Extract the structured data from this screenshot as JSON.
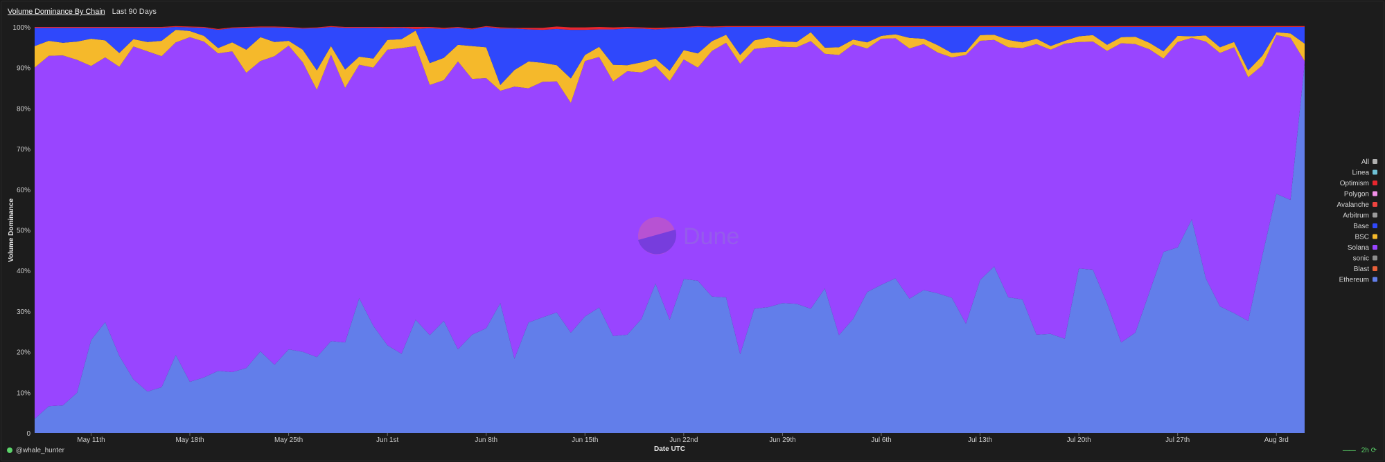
{
  "header": {
    "title": "Volume Dominance By Chain",
    "subtitle": "Last 90 Days"
  },
  "footer": {
    "user": "@whale_hunter",
    "refresh": "2h"
  },
  "watermark": "Dune",
  "chart_data": {
    "type": "area",
    "stacked": "percent",
    "xlabel": "Date UTC",
    "ylabel": "Volume Dominance",
    "ylim": [
      0,
      100
    ],
    "yticks": [
      "0",
      "10%",
      "20%",
      "30%",
      "40%",
      "50%",
      "60%",
      "70%",
      "80%",
      "90%",
      "100%"
    ],
    "xtick_labels": [
      "May 11th",
      "May 18th",
      "May 25th",
      "Jun 1st",
      "Jun 8th",
      "Jun 15th",
      "Jun 22nd",
      "Jun 29th",
      "Jul 6th",
      "Jul 13th",
      "Jul 20th",
      "Jul 27th",
      "Aug 3rd"
    ],
    "legend_position": "right",
    "legend": [
      {
        "name": "All",
        "color": "#b0b0b0"
      },
      {
        "name": "Linea",
        "color": "#6ec1d6"
      },
      {
        "name": "Optimism",
        "color": "#e8262e"
      },
      {
        "name": "Polygon",
        "color": "#f08fe8"
      },
      {
        "name": "Avalanche",
        "color": "#ee4440"
      },
      {
        "name": "Arbitrum",
        "color": "#9a9a9a"
      },
      {
        "name": "Base",
        "color": "#2f48fb"
      },
      {
        "name": "BSC",
        "color": "#f5b92b"
      },
      {
        "name": "Solana",
        "color": "#9945ff"
      },
      {
        "name": "sonic",
        "color": "#8e8e8e"
      },
      {
        "name": "Blast",
        "color": "#e8603a"
      },
      {
        "name": "Ethereum",
        "color": "#627eea"
      }
    ],
    "x_start_date": "2025-05-07",
    "series": [
      {
        "name": "Ethereum",
        "color": "#627eea",
        "values": [
          3.5,
          6.6,
          6.8,
          9.9,
          22.9,
          27.3,
          19,
          13.2,
          10.2,
          11.3,
          19.2,
          12.6,
          13.7,
          15.3,
          15,
          16,
          20.1,
          16.8,
          20.6,
          20,
          18.7,
          22.6,
          22.3,
          33.2,
          26.4,
          21.6,
          19.5,
          27.9,
          24.1,
          27.6,
          20.6,
          24.2,
          25.8,
          32,
          18.3,
          27.2,
          28.5,
          29.7,
          24.7,
          28.7,
          30.9,
          23.9,
          24.2,
          28.1,
          36.8,
          27.9,
          37.9,
          37.5,
          33.6,
          33.4,
          19.4,
          30.6,
          31,
          32,
          31.8,
          30.6,
          35.6,
          24.1,
          28.1,
          34.7,
          36.5,
          38.1,
          33.1,
          35.2,
          34.4,
          33.3,
          26.9,
          37.7,
          41,
          33.4,
          32.9,
          24.2,
          24.4,
          23.2,
          40.5,
          40.2,
          31.9,
          22.3,
          24.7,
          34.7,
          44.6,
          45.7,
          52.6,
          38.1,
          31.2,
          29.5,
          27.6,
          43.7,
          58.9,
          57.4,
          91
        ]
      },
      {
        "name": "Solana",
        "color": "#9945ff",
        "values": [
          86.5,
          86.3,
          86.2,
          82,
          67.5,
          65.2,
          71.2,
          82,
          83.8,
          81.5,
          77,
          84.9,
          82.7,
          78.2,
          79,
          72.7,
          71.5,
          76,
          74.8,
          71.3,
          65.8,
          70.6,
          62.7,
          57.5,
          63.6,
          72.8,
          75.3,
          67.4,
          61.6,
          59.3,
          70.9,
          63,
          61.6,
          52.3,
          67,
          57.7,
          58,
          56.9,
          56.6,
          62.9,
          61.7,
          62.7,
          64.9,
          60.7,
          53.6,
          58.8,
          54.1,
          52.5,
          60.5,
          62.7,
          71.5,
          64,
          64,
          63.1,
          63.2,
          65.9,
          57.8,
          69,
          67.6,
          60,
          60.6,
          59.1,
          61.6,
          60.6,
          59.3,
          59.2,
          66.2,
          58.9,
          55.8,
          61.6,
          61.9,
          71.6,
          70,
          72.7,
          55.8,
          56.2,
          62.2,
          73.7,
          71.1,
          59.8,
          47.6,
          50.6,
          44.7,
          58.3,
          62.4,
          65.5,
          60,
          46.8,
          39.1,
          39.9,
          0.6
        ]
      },
      {
        "name": "BSC",
        "color": "#f5b92b",
        "values": [
          5.3,
          3.7,
          3.1,
          4.5,
          6.7,
          4.2,
          3.4,
          1.8,
          2.3,
          3.8,
          3.1,
          1.5,
          1.4,
          1.3,
          2.2,
          5.7,
          5.9,
          3.5,
          1.2,
          3.1,
          4.8,
          2.1,
          4.5,
          2,
          2.2,
          2.4,
          2.2,
          3.8,
          5.4,
          5.5,
          4.1,
          8.1,
          7.6,
          1.4,
          4.1,
          6.6,
          4.7,
          4,
          6,
          1.5,
          2.5,
          4.1,
          1.5,
          2.5,
          1.8,
          2.5,
          2.3,
          3.5,
          2.4,
          2,
          2.2,
          2.1,
          2.4,
          1.3,
          1.3,
          2.2,
          1.5,
          1.9,
          1.2,
          1.5,
          0.7,
          1,
          2.6,
          1.3,
          1.8,
          1.1,
          0.8,
          1.4,
          1.3,
          1.8,
          1.4,
          1.3,
          0.9,
          0.7,
          1.4,
          1.6,
          1.5,
          1.5,
          1.8,
          1.6,
          1.8,
          1.5,
          0.4,
          1.5,
          1.4,
          1.3,
          1.7,
          2.4,
          0.7,
          1.1,
          4.3
        ]
      },
      {
        "name": "Base",
        "color": "#2f48fb",
        "values": [
          4.5,
          3.2,
          3.7,
          3.4,
          2.7,
          3.1,
          6.2,
          2.8,
          3.5,
          3.2,
          0.7,
          0.9,
          2,
          4.5,
          3.5,
          5.4,
          2.4,
          3.6,
          3.2,
          5.2,
          10.4,
          4.7,
          10.3,
          7.1,
          7.6,
          2.9,
          2.8,
          0.4,
          8.6,
          7.1,
          4.2,
          4.1,
          5,
          13.9,
          10.2,
          7.9,
          8.1,
          8.9,
          12,
          6.2,
          4.3,
          8.7,
          9,
          8.3,
          7.2,
          10.4,
          5.5,
          6.5,
          3.4,
          1.9,
          6.9,
          3.3,
          2.6,
          3.6,
          3.7,
          1.3,
          5.1,
          5,
          3.1,
          3.8,
          2.2,
          1.8,
          2.7,
          2.9,
          4.5,
          6.4,
          6.1,
          2,
          1.9,
          3.2,
          3.8,
          2.9,
          4.7,
          3.4,
          2.3,
          2,
          4.4,
          2.5,
          2.4,
          3.9,
          6,
          2.2,
          2.3,
          2.1,
          5,
          3.7,
          10.7,
          7.1,
          1.3,
          1.6,
          4.1
        ]
      },
      {
        "name": "Optimism",
        "color": "#e8262e",
        "values": [
          0.2,
          0.2,
          0.2,
          0.2,
          0.2,
          0.2,
          0.2,
          0.2,
          0.2,
          0.2,
          0.2,
          0.2,
          0.2,
          0.2,
          0.2,
          0.2,
          0.2,
          0.2,
          0.2,
          0.2,
          0.2,
          0.2,
          0.2,
          0.2,
          0.2,
          0.3,
          0.2,
          0.5,
          0.3,
          0.3,
          0.2,
          0.2,
          0.2,
          0.3,
          0.2,
          0.4,
          0.5,
          0.6,
          0.6,
          0.6,
          0.6,
          0.5,
          0.4,
          0.3,
          0.4,
          0.3,
          0.2,
          0.2,
          0.2,
          0.2,
          0.2,
          0.2,
          0.2,
          0.2,
          0.2,
          0.2,
          0.2,
          0.2,
          0.2,
          0.2,
          0.2,
          0.2,
          0.2,
          0.2,
          0.2,
          0.2,
          0.2,
          0.2,
          0.2,
          0.2,
          0.2,
          0.2,
          0.2,
          0.2,
          0.2,
          0.2,
          0.2,
          0.2,
          0.2,
          0.2,
          0.2,
          0.2,
          0.2,
          0.2,
          0.2,
          0.2,
          0.2,
          0.2,
          0.2,
          0.2,
          0.2
        ]
      }
    ]
  }
}
